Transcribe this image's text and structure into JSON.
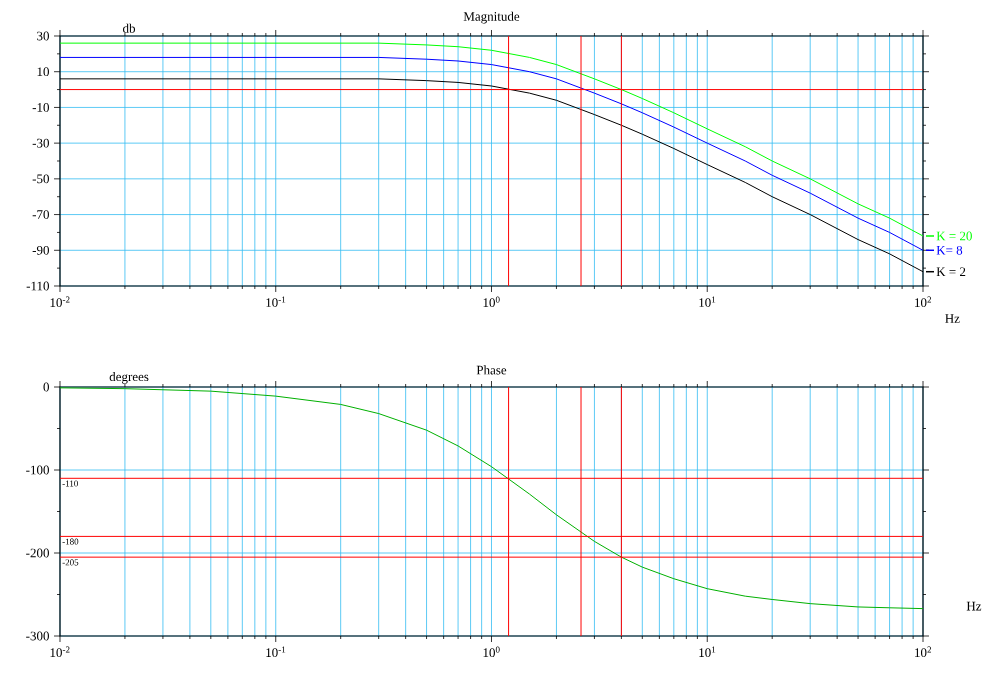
{
  "chart_data": [
    {
      "type": "line",
      "title": "Magnitude",
      "xlabel": "Hz",
      "ylabel": "db",
      "log": "x",
      "grid": true,
      "legend": "right",
      "x": [
        0.01,
        0.02,
        0.05,
        0.1,
        0.2,
        0.3,
        0.5,
        0.7,
        1,
        1.5,
        2,
        3,
        4,
        5,
        7,
        10,
        15,
        20,
        30,
        50,
        70,
        100
      ],
      "xlim": [
        0.01,
        100
      ],
      "xticks": [
        {
          "value": 0.01,
          "label": "10$^{-2}$"
        },
        {
          "value": 0.1,
          "label": "10$^{-1}$"
        },
        {
          "value": 1,
          "label": "10$^{0}$"
        },
        {
          "value": 10,
          "label": "10$^{1}$"
        },
        {
          "value": 100,
          "label": "10$^{2}$"
        }
      ],
      "ylim": [
        -110,
        30
      ],
      "yticks": [
        30,
        10,
        -10,
        -30,
        -50,
        -70,
        -90,
        -110
      ],
      "series": [
        {
          "name": "K = 20",
          "color": "#00ff00",
          "values": [
            26,
            26,
            26,
            26,
            26,
            26,
            25,
            24,
            22,
            18,
            14,
            6,
            0,
            -5,
            -13,
            -22,
            -32,
            -40,
            -50,
            -64,
            -72,
            -82
          ]
        },
        {
          "name": "K= 8",
          "color": "#0000ff",
          "values": [
            18,
            18,
            18,
            18,
            18,
            18,
            17,
            16,
            14,
            10,
            6,
            -2,
            -8,
            -13,
            -21,
            -30,
            -40,
            -48,
            -58,
            -72,
            -80,
            -90
          ]
        },
        {
          "name": "K = 2",
          "color": "#000000",
          "values": [
            6,
            6,
            6,
            6,
            6,
            6,
            5,
            4,
            2,
            -2,
            -6,
            -14,
            -20,
            -25,
            -33,
            -42,
            -52,
            -60,
            -70,
            -84,
            -92,
            -102
          ]
        }
      ],
      "ref_lines": [
        {
          "axis": "y",
          "value": 0,
          "color": "#ff0000"
        },
        {
          "axis": "x",
          "value": 1.2,
          "color": "#ff0000"
        },
        {
          "axis": "x",
          "value": 2.6,
          "color": "#ff0000"
        },
        {
          "axis": "x",
          "value": 4.0,
          "color": "#ff0000"
        }
      ]
    },
    {
      "type": "line",
      "title": "Phase",
      "xlabel": "Hz",
      "ylabel": "degrees",
      "log": "x",
      "grid": true,
      "x": [
        0.01,
        0.02,
        0.05,
        0.1,
        0.2,
        0.3,
        0.5,
        0.7,
        1,
        1.5,
        2,
        3,
        4,
        5,
        7,
        10,
        15,
        20,
        30,
        50,
        70,
        100
      ],
      "xlim": [
        0.01,
        100
      ],
      "xticks": [
        {
          "value": 0.01,
          "label": "10$^{-2}$"
        },
        {
          "value": 0.1,
          "label": "10$^{-1}$"
        },
        {
          "value": 1,
          "label": "10$^{0}$"
        },
        {
          "value": 10,
          "label": "10$^{1}$"
        },
        {
          "value": 100,
          "label": "10$^{2}$"
        }
      ],
      "ylim": [
        -300,
        0
      ],
      "yticks": [
        0,
        -100,
        -200,
        -300
      ],
      "series": [
        {
          "color": "#00b000",
          "values": [
            -1,
            -2,
            -5,
            -11,
            -21,
            -32,
            -52,
            -71,
            -96,
            -129,
            -154,
            -186,
            -205,
            -217,
            -231,
            -243,
            -252,
            -256,
            -261,
            -265,
            -266,
            -267
          ]
        }
      ],
      "ref_lines": [
        {
          "axis": "y",
          "value": -110,
          "label": "-110",
          "color": "#ff0000"
        },
        {
          "axis": "y",
          "value": -180,
          "label": "-180",
          "color": "#ff0000"
        },
        {
          "axis": "y",
          "value": -205,
          "label": "-205",
          "color": "#ff0000"
        },
        {
          "axis": "x",
          "value": 1.2,
          "color": "#ff0000"
        },
        {
          "axis": "x",
          "value": 2.6,
          "color": "#ff0000"
        },
        {
          "axis": "x",
          "value": 4.0,
          "color": "#ff0000"
        }
      ]
    }
  ]
}
